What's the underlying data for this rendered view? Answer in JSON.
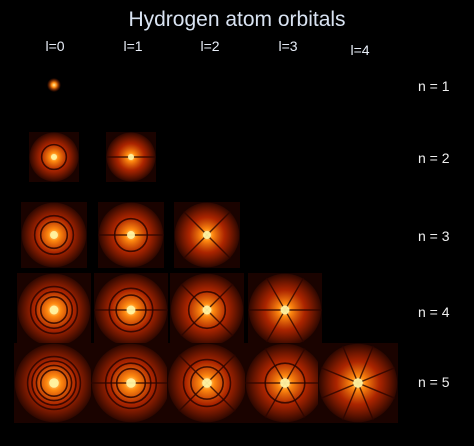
{
  "title": "Hydrogen atom orbitals",
  "columns": [
    "l=0",
    "l=1",
    "l=2",
    "l=3",
    "l=4"
  ],
  "rows": [
    "n = 1",
    "n = 2",
    "n = 3",
    "n = 4",
    "n = 5"
  ],
  "colors": {
    "background": "#000000",
    "glow_core": "#fff2a0",
    "glow_mid": "#ff8a10",
    "glow_outer": "#c42a00",
    "title_text": "#d9e3f2"
  }
}
